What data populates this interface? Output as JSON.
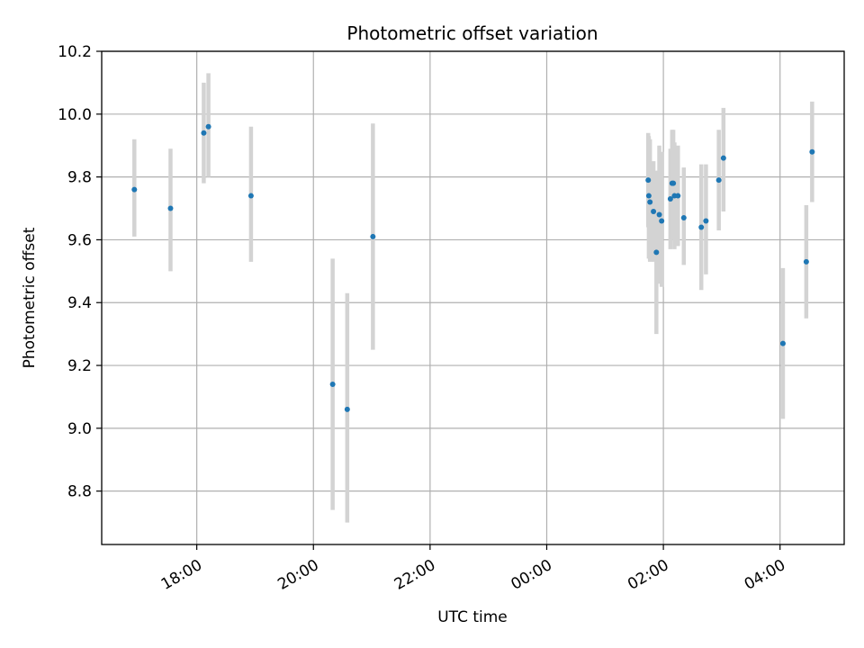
{
  "chart_data": {
    "type": "scatter",
    "title": "Photometric offset variation",
    "xlabel": "UTC time",
    "ylabel": "Photometric offset",
    "x_axis_kind": "time",
    "x_unit": "hours (UTC); values past 24 fall on the next day",
    "xlim": [
      16.37,
      29.1
    ],
    "ylim": [
      8.63,
      10.2
    ],
    "x_ticks": [
      {
        "value": 18,
        "label": "18:00"
      },
      {
        "value": 20,
        "label": "20:00"
      },
      {
        "value": 22,
        "label": "22:00"
      },
      {
        "value": 24,
        "label": "00:00"
      },
      {
        "value": 26,
        "label": "02:00"
      },
      {
        "value": 28,
        "label": "04:00"
      }
    ],
    "y_ticks": [
      {
        "value": 8.8,
        "label": "8.8"
      },
      {
        "value": 9.0,
        "label": "9.0"
      },
      {
        "value": 9.2,
        "label": "9.2"
      },
      {
        "value": 9.4,
        "label": "9.4"
      },
      {
        "value": 9.6,
        "label": "9.6"
      },
      {
        "value": 9.8,
        "label": "9.8"
      },
      {
        "value": 10.0,
        "label": "10.0"
      },
      {
        "value": 10.2,
        "label": "10.2"
      }
    ],
    "grid": true,
    "legend": "none",
    "colors": {
      "marker": "#1f77b4",
      "errorbar": "#d3d3d3",
      "grid": "#b0b0b0",
      "axes": "#000000"
    },
    "series": [
      {
        "points": [
          {
            "x": 16.93,
            "y": 9.76,
            "ylo": 9.61,
            "yhi": 9.92
          },
          {
            "x": 17.55,
            "y": 9.7,
            "ylo": 9.5,
            "yhi": 9.89
          },
          {
            "x": 18.12,
            "y": 9.94,
            "ylo": 9.78,
            "yhi": 10.1
          },
          {
            "x": 18.2,
            "y": 9.96,
            "ylo": 9.8,
            "yhi": 10.13
          },
          {
            "x": 18.93,
            "y": 9.74,
            "ylo": 9.53,
            "yhi": 9.96
          },
          {
            "x": 20.33,
            "y": 9.14,
            "ylo": 8.74,
            "yhi": 9.54
          },
          {
            "x": 20.58,
            "y": 9.06,
            "ylo": 8.7,
            "yhi": 9.43
          },
          {
            "x": 21.02,
            "y": 9.61,
            "ylo": 9.25,
            "yhi": 9.97
          },
          {
            "x": 25.74,
            "y": 9.79,
            "ylo": 9.64,
            "yhi": 9.94
          },
          {
            "x": 25.75,
            "y": 9.74,
            "ylo": 9.54,
            "yhi": 9.93
          },
          {
            "x": 25.77,
            "y": 9.72,
            "ylo": 9.53,
            "yhi": 9.92
          },
          {
            "x": 25.83,
            "y": 9.69,
            "ylo": 9.53,
            "yhi": 9.85
          },
          {
            "x": 25.88,
            "y": 9.56,
            "ylo": 9.3,
            "yhi": 9.82
          },
          {
            "x": 25.93,
            "y": 9.68,
            "ylo": 9.46,
            "yhi": 9.9
          },
          {
            "x": 25.97,
            "y": 9.66,
            "ylo": 9.45,
            "yhi": 9.88
          },
          {
            "x": 26.12,
            "y": 9.73,
            "ylo": 9.57,
            "yhi": 9.89
          },
          {
            "x": 26.15,
            "y": 9.78,
            "ylo": 9.6,
            "yhi": 9.95
          },
          {
            "x": 26.17,
            "y": 9.78,
            "ylo": 9.61,
            "yhi": 9.95
          },
          {
            "x": 26.19,
            "y": 9.74,
            "ylo": 9.57,
            "yhi": 9.91
          },
          {
            "x": 26.25,
            "y": 9.74,
            "ylo": 9.58,
            "yhi": 9.9
          },
          {
            "x": 26.35,
            "y": 9.67,
            "ylo": 9.52,
            "yhi": 9.83
          },
          {
            "x": 26.65,
            "y": 9.64,
            "ylo": 9.44,
            "yhi": 9.84
          },
          {
            "x": 26.73,
            "y": 9.66,
            "ylo": 9.49,
            "yhi": 9.84
          },
          {
            "x": 26.95,
            "y": 9.79,
            "ylo": 9.63,
            "yhi": 9.95
          },
          {
            "x": 27.03,
            "y": 9.86,
            "ylo": 9.69,
            "yhi": 10.02
          },
          {
            "x": 28.05,
            "y": 9.27,
            "ylo": 9.03,
            "yhi": 9.51
          },
          {
            "x": 28.45,
            "y": 9.53,
            "ylo": 9.35,
            "yhi": 9.71
          },
          {
            "x": 28.55,
            "y": 9.88,
            "ylo": 9.72,
            "yhi": 10.04
          }
        ]
      }
    ]
  }
}
